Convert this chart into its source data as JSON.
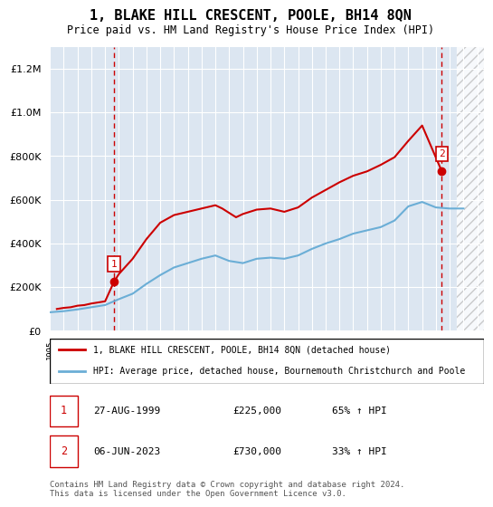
{
  "title": "1, BLAKE HILL CRESCENT, POOLE, BH14 8QN",
  "subtitle": "Price paid vs. HM Land Registry's House Price Index (HPI)",
  "legend_line1": "1, BLAKE HILL CRESCENT, POOLE, BH14 8QN (detached house)",
  "legend_line2": "HPI: Average price, detached house, Bournemouth Christchurch and Poole",
  "footnote": "Contains HM Land Registry data © Crown copyright and database right 2024.\nThis data is licensed under the Open Government Licence v3.0.",
  "sale1_label": "1",
  "sale1_date": "27-AUG-1999",
  "sale1_price": "£225,000",
  "sale1_hpi": "65% ↑ HPI",
  "sale2_label": "2",
  "sale2_date": "06-JUN-2023",
  "sale2_price": "£730,000",
  "sale2_hpi": "33% ↑ HPI",
  "ylim": [
    0,
    1300000
  ],
  "yticks": [
    0,
    200000,
    400000,
    600000,
    800000,
    1000000,
    1200000
  ],
  "xlim_start": 1995.0,
  "xlim_end": 2026.5,
  "bg_color": "#dce6f1",
  "plot_bg": "#dce6f1",
  "future_hatch_color": "#b0c4de",
  "red_color": "#cc0000",
  "blue_color": "#6baed6",
  "sale1_x": 1999.65,
  "sale1_y": 225000,
  "sale2_x": 2023.43,
  "sale2_y": 730000,
  "hpi_years": [
    1995,
    1996,
    1997,
    1998,
    1999,
    2000,
    2001,
    2002,
    2003,
    2004,
    2005,
    2006,
    2007,
    2008,
    2009,
    2010,
    2011,
    2012,
    2013,
    2014,
    2015,
    2016,
    2017,
    2018,
    2019,
    2020,
    2021,
    2022,
    2023,
    2024,
    2025
  ],
  "hpi_values": [
    85000,
    90000,
    98000,
    108000,
    118000,
    145000,
    170000,
    215000,
    255000,
    290000,
    310000,
    330000,
    345000,
    320000,
    310000,
    330000,
    335000,
    330000,
    345000,
    375000,
    400000,
    420000,
    445000,
    460000,
    475000,
    505000,
    570000,
    590000,
    565000,
    560000,
    560000
  ],
  "red_years": [
    1995.5,
    1996,
    1996.5,
    1997,
    1997.5,
    1998,
    1998.5,
    1999,
    1999.65,
    2000,
    2001,
    2002,
    2003,
    2004,
    2005,
    2006,
    2007,
    2007.5,
    2008,
    2008.5,
    2009,
    2010,
    2011,
    2012,
    2013,
    2014,
    2015,
    2016,
    2017,
    2018,
    2019,
    2020,
    2021,
    2022,
    2023.43
  ],
  "red_values": [
    100000,
    105000,
    108000,
    115000,
    118000,
    125000,
    130000,
    135000,
    225000,
    260000,
    330000,
    420000,
    495000,
    530000,
    545000,
    560000,
    575000,
    560000,
    540000,
    520000,
    535000,
    555000,
    560000,
    545000,
    565000,
    610000,
    645000,
    680000,
    710000,
    730000,
    760000,
    795000,
    870000,
    940000,
    730000
  ]
}
